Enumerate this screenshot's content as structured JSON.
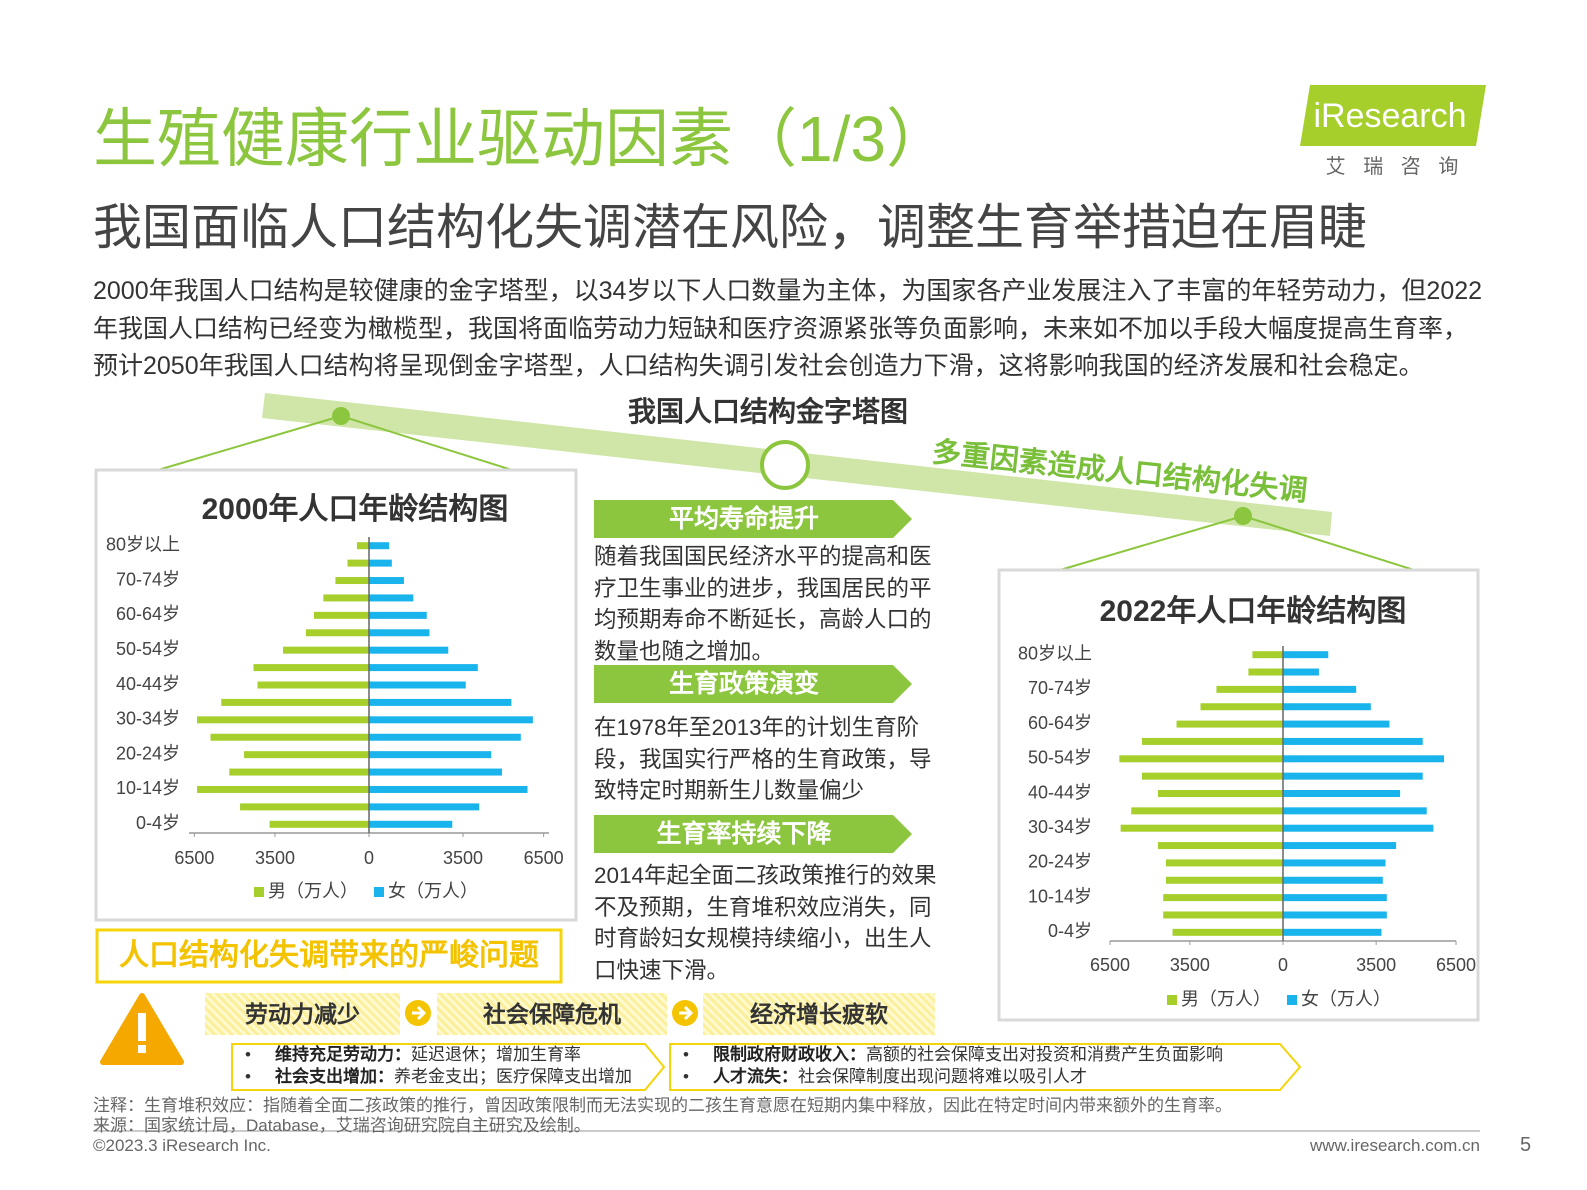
{
  "header": {
    "title": "生殖健康行业驱动因素（1/3）",
    "subtitle": "我国面临人口结构化失调潜在风险，调整生育举措迫在眉睫",
    "logo": "iResearch",
    "logo_cn": "艾 瑞 咨 询"
  },
  "intro": "2000年我国人口结构是较健康的金字塔型，以34岁以下人口数量为主体，为国家各产业发展注入了丰富的年轻劳动力，但2022年我国人口结构已经变为橄榄型，我国将面临劳动力短缺和医疗资源紧张等负面影响，未来如不加以手段大幅度提高生育率，预计2050年我国人口结构将呈现倒金字塔型，人口结构失调引发社会创造力下滑，这将影响我国的经济发展和社会稳定。",
  "diagram_title": "我国人口结构金字塔图",
  "banner": "多重因素造成人口结构化失调",
  "factors": [
    {
      "title": "平均寿命提升",
      "text": "随着我国国民经济水平的提高和医疗卫生事业的进步，我国居民的平均预期寿命不断延长，高龄人口的数量也随之增加。"
    },
    {
      "title": "生育政策演变",
      "text": "在1978年至2013年的计划生育阶段，我国实行严格的生育政策，导致特定时期新生儿数量偏少"
    },
    {
      "title": "生育率持续下降",
      "text": "2014年起全面二孩政策推行的效果不及预期，生育堆积效应消失，同时育龄妇女规模持续缩小，出生人口快速下滑。"
    }
  ],
  "problems": {
    "title": "人口结构化失调带来的严峻问题",
    "items": [
      "劳动力减少",
      "社会保障危机",
      "经济增长疲软"
    ],
    "notes": [
      [
        {
          "label": "维持充足劳动力：",
          "text": "延迟退休；增加生育率"
        },
        {
          "label": "社会支出增加：",
          "text": "养老金支出；医疗保障支出增加"
        }
      ],
      [
        {
          "label": "限制政府财政收入：",
          "text": "高额的社会保障支出对投资和消费产生负面影响"
        },
        {
          "label": "人才流失：",
          "text": "社会保障制度出现问题将难以吸引人才"
        }
      ]
    ]
  },
  "footer": {
    "note": "注释：生育堆积效应：指随着全面二孩政策的推行，曾因政策限制而无法实现的二孩生育意愿在短期内集中释放，因此在特定时间内带来额外的生育率。",
    "source": "来源：国家统计局，Database，艾瑞咨询研究院自主研究及绘制。",
    "copyright": "©2023.3 iResearch Inc.",
    "url": "www.iresearch.com.cn",
    "page": "5"
  },
  "chart_data": [
    {
      "type": "pyramid",
      "title": "2000年人口年龄结构图",
      "categories": [
        "0-4岁",
        null,
        "10-14岁",
        null,
        "20-24岁",
        null,
        "30-34岁",
        null,
        "40-44岁",
        null,
        "50-54岁",
        null,
        "60-64岁",
        null,
        "70-74岁",
        null,
        "80岁以上"
      ],
      "series": [
        {
          "name": "男（万人）",
          "color": "#a6cf2c",
          "values": [
            -3700,
            -4800,
            -6400,
            -5200,
            -4650,
            -5900,
            -6400,
            -5500,
            -4150,
            -4300,
            -3200,
            -2350,
            -2050,
            -1700,
            -1250,
            -800,
            -450
          ]
        },
        {
          "name": "女（万人）",
          "color": "#1ab4ec",
          "values": [
            3100,
            4100,
            5900,
            4950,
            4550,
            5650,
            6100,
            5300,
            3600,
            4050,
            2950,
            2250,
            2150,
            1650,
            1300,
            850,
            750
          ]
        }
      ],
      "xlim": [
        -6700,
        6700
      ],
      "xticks": [
        {
          "value": -6500,
          "label": "6500"
        },
        {
          "value": -3500,
          "label": "3500"
        },
        0,
        3500,
        6500
      ]
    },
    {
      "type": "pyramid",
      "title": "2022年人口年龄结构图",
      "categories": [
        "0-4岁",
        null,
        "10-14岁",
        null,
        "20-24岁",
        null,
        "30-34岁",
        null,
        "40-44岁",
        null,
        "50-54岁",
        null,
        "60-64岁",
        null,
        "70-74岁",
        null,
        "80岁以上"
      ],
      "series": [
        {
          "name": "男（万人）",
          "color": "#a6cf2c",
          "values": [
            -4150,
            -4500,
            -4500,
            -4400,
            -4400,
            -4700,
            -6100,
            -5700,
            -4700,
            -5300,
            -6150,
            -5300,
            -4000,
            -3100,
            -2500,
            -1300,
            -1150
          ]
        },
        {
          "name": "女（万人）",
          "color": "#1ab4ec",
          "values": [
            3700,
            3900,
            3900,
            3750,
            3850,
            4250,
            5650,
            5400,
            4400,
            5250,
            6050,
            5250,
            4000,
            3300,
            2750,
            1350,
            1700
          ]
        }
      ],
      "xlim": [
        -6500,
        6500
      ],
      "xticks": [
        {
          "value": -6500,
          "label": "6500"
        },
        {
          "value": -3500,
          "label": "3500"
        },
        0,
        3500,
        6500
      ]
    }
  ]
}
